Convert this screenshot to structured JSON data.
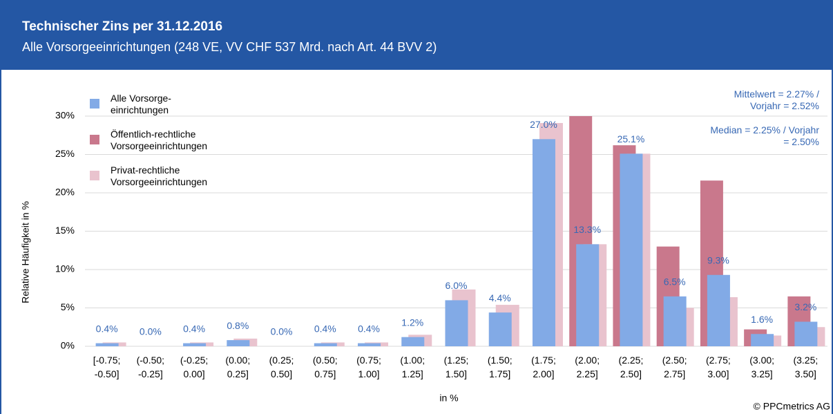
{
  "header": {
    "title": "Technischer Zins per 31.12.2016",
    "subtitle": "Alle Vorsorgeeinrichtungen (248 VE, VV CHF 537 Mrd. nach Art. 44 BVV 2)"
  },
  "chart_data": {
    "type": "bar",
    "categories": [
      "[-0.75; -0.50]",
      "(-0.50; -0.25]",
      "(-0.25; 0.00]",
      "(0.00; 0.25]",
      "(0.25; 0.50]",
      "(0.50; 0.75]",
      "(0.75; 1.00]",
      "(1.00; 1.25]",
      "(1.25; 1.50]",
      "(1.50; 1.75]",
      "(1.75; 2.00]",
      "(2.00; 2.25]",
      "(2.25; 2.50]",
      "(2.50; 2.75]",
      "(2.75; 3.00]",
      "(3.00; 3.25]",
      "(3.25; 3.50]"
    ],
    "series": [
      {
        "name": "Alle Vorsorge-einrichtungen",
        "color": "#82aae6",
        "values": [
          0.4,
          0.0,
          0.4,
          0.8,
          0.0,
          0.4,
          0.4,
          1.2,
          6.0,
          4.4,
          27.0,
          13.3,
          25.1,
          6.5,
          9.3,
          1.6,
          3.2
        ],
        "value_labels": [
          "0.4%",
          "0.0%",
          "0.4%",
          "0.8%",
          "0.0%",
          "0.4%",
          "0.4%",
          "1.2%",
          "6.0%",
          "4.4%",
          "27.0%",
          "13.3%",
          "25.1%",
          "6.5%",
          "9.3%",
          "1.6%",
          "3.2%"
        ]
      },
      {
        "name": "Öffentlich-rechtliche Vorsorgeeinrichtungen",
        "color": "#c9788c",
        "values": [
          0,
          0,
          0,
          0,
          0,
          0,
          0,
          0,
          0,
          0,
          0,
          30.0,
          26.2,
          13.0,
          21.6,
          2.2,
          6.5
        ]
      },
      {
        "name": "Privat-rechtliche Vorsorgeeinrichtungen",
        "color": "#e9c3ce",
        "values": [
          0.5,
          0,
          0.5,
          1.0,
          0,
          0.5,
          0.5,
          1.5,
          7.4,
          5.4,
          29.1,
          13.3,
          25.1,
          5.0,
          6.4,
          1.4,
          2.5
        ]
      }
    ],
    "ylim": [
      0,
      30
    ],
    "yticks": [
      {
        "value": 0,
        "label": "0%"
      },
      {
        "value": 5,
        "label": "5%"
      },
      {
        "value": 10,
        "label": "10%"
      },
      {
        "value": 15,
        "label": "15%"
      },
      {
        "value": 20,
        "label": "20%"
      },
      {
        "value": 25,
        "label": "25%"
      },
      {
        "value": 30,
        "label": "30%"
      }
    ],
    "grid": true,
    "xlabel": "in %",
    "ylabel": "Relative Häufigkeit in %",
    "annotations": [
      "Mittelwert = 2.27% / Vorjahr = 2.52%",
      "Median = 2.25% / Vorjahr = 2.50%"
    ],
    "source": "© PPCmetrics AG"
  }
}
